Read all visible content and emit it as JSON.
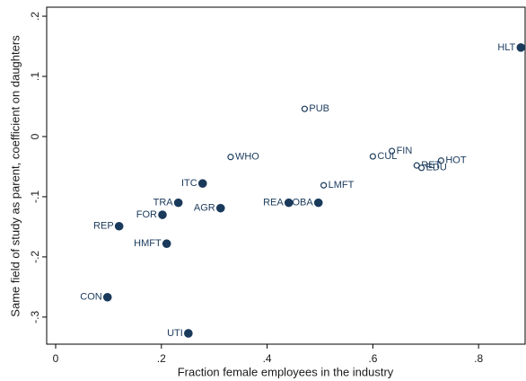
{
  "chart_data": {
    "type": "scatter",
    "x_label": "Fraction female employees in the industry",
    "y_label": "Same field of study as parent, coefficient on daughters",
    "xlim": [
      -0.017,
      0.888
    ],
    "ylim": [
      -0.345,
      0.215
    ],
    "xticks": [
      0,
      {
        "value": 0.2,
        "label": ".2"
      },
      {
        "value": 0.4,
        "label": ".4"
      },
      {
        "value": 0.6,
        "label": ".6"
      },
      {
        "value": 0.8,
        "label": ".8"
      }
    ],
    "yticks": [
      {
        "value": -0.3,
        "label": "-.3"
      },
      {
        "value": -0.2,
        "label": "-.2"
      },
      {
        "value": -0.1,
        "label": "-.1"
      },
      0,
      {
        "value": 0.1,
        "label": ".1"
      },
      {
        "value": 0.2,
        "label": ".2"
      }
    ],
    "series": [
      {
        "color": "#1a3a5c",
        "marker": "filled",
        "labels": [
          "HLT",
          "ITC",
          "TRA",
          "AGR",
          "FOR",
          "REA",
          "OBA",
          "REP",
          "HMFT",
          "CON",
          "UTI"
        ],
        "x": [
          0.88,
          0.278,
          0.232,
          0.312,
          0.202,
          0.441,
          0.497,
          0.12,
          0.21,
          0.098,
          0.251
        ],
        "values": [
          0.148,
          -0.078,
          -0.11,
          -0.119,
          -0.13,
          -0.11,
          -0.11,
          -0.149,
          -0.178,
          -0.267,
          -0.327
        ]
      },
      {
        "color": "#1a3a5c",
        "marker": "hollow",
        "labels": [
          "PUB",
          "WHO",
          "FIN",
          "CUL",
          "HOT",
          "RET",
          "EDU",
          "LMFT"
        ],
        "x": [
          0.471,
          0.331,
          0.636,
          0.6,
          0.729,
          0.683,
          0.692,
          0.507
        ],
        "values": [
          0.046,
          -0.034,
          -0.024,
          -0.033,
          -0.04,
          -0.048,
          -0.052,
          -0.081
        ]
      }
    ]
  }
}
